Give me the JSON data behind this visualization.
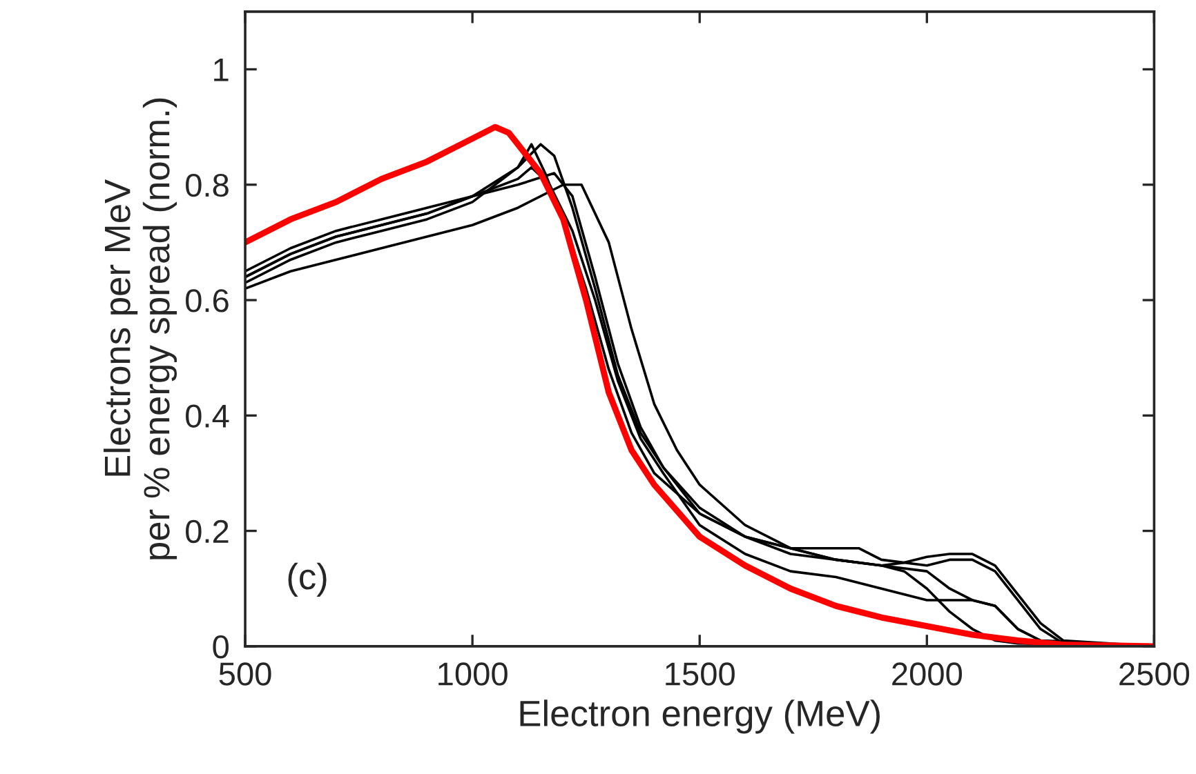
{
  "chart_data": {
    "type": "line",
    "xlabel": "Electron energy (MeV)",
    "ylabel": "Electrons per MeV\nper % energy spread (norm.)",
    "annotations": [
      "(c)"
    ],
    "xlim": [
      500,
      2500
    ],
    "ylim": [
      0,
      1.1
    ],
    "xticks": [
      500,
      1000,
      1500,
      2000,
      2500
    ],
    "yticks": [
      0,
      {
        "value": 0.2,
        "label": "0.2"
      },
      {
        "value": 0.4,
        "label": "0.4"
      },
      {
        "value": 0.6,
        "label": "0.6"
      },
      {
        "value": 0.8,
        "label": "0.8"
      },
      1
    ],
    "grid": false,
    "line_style": "solid",
    "marker": "none",
    "series": [
      {
        "color": "#000000",
        "x": [
          500,
          600,
          700,
          800,
          900,
          1000,
          1100,
          1130,
          1160,
          1200,
          1250,
          1300,
          1350,
          1400,
          1500,
          1600,
          1700,
          1800,
          1900,
          1950,
          2000,
          2050,
          2100,
          2150,
          2200,
          2500
        ],
        "values": [
          0.63,
          0.67,
          0.7,
          0.72,
          0.74,
          0.77,
          0.83,
          0.87,
          0.82,
          0.74,
          0.62,
          0.48,
          0.37,
          0.3,
          0.23,
          0.19,
          0.17,
          0.15,
          0.14,
          0.13,
          0.1,
          0.06,
          0.03,
          0.01,
          0.005,
          0
        ]
      },
      {
        "color": "#000000",
        "x": [
          500,
          600,
          700,
          800,
          900,
          1000,
          1100,
          1150,
          1180,
          1220,
          1270,
          1320,
          1370,
          1420,
          1500,
          1600,
          1700,
          1800,
          1900,
          2000,
          2050,
          2100,
          2150,
          2200,
          2250,
          2500
        ],
        "values": [
          0.64,
          0.68,
          0.71,
          0.73,
          0.75,
          0.78,
          0.83,
          0.87,
          0.85,
          0.76,
          0.62,
          0.47,
          0.37,
          0.31,
          0.24,
          0.19,
          0.16,
          0.15,
          0.14,
          0.13,
          0.1,
          0.08,
          0.07,
          0.03,
          0.01,
          0
        ]
      },
      {
        "color": "#000000",
        "x": [
          500,
          600,
          700,
          800,
          900,
          1000,
          1100,
          1200,
          1240,
          1300,
          1350,
          1400,
          1450,
          1500,
          1600,
          1700,
          1800,
          1850,
          1900,
          2000,
          2050,
          2100,
          2150,
          2200,
          2250,
          2300,
          2500
        ],
        "values": [
          0.62,
          0.65,
          0.67,
          0.69,
          0.71,
          0.73,
          0.76,
          0.8,
          0.8,
          0.7,
          0.55,
          0.42,
          0.34,
          0.28,
          0.21,
          0.17,
          0.17,
          0.17,
          0.15,
          0.14,
          0.15,
          0.15,
          0.13,
          0.08,
          0.03,
          0.005,
          0
        ]
      },
      {
        "color": "#000000",
        "x": [
          500,
          600,
          700,
          800,
          900,
          1000,
          1100,
          1130,
          1170,
          1220,
          1270,
          1320,
          1370,
          1420,
          1500,
          1600,
          1700,
          1800,
          1900,
          2000,
          2100,
          2150,
          2200,
          2250,
          2500
        ],
        "values": [
          0.64,
          0.68,
          0.71,
          0.73,
          0.75,
          0.78,
          0.81,
          0.83,
          0.8,
          0.72,
          0.6,
          0.46,
          0.36,
          0.3,
          0.21,
          0.16,
          0.13,
          0.12,
          0.1,
          0.08,
          0.08,
          0.07,
          0.03,
          0.01,
          0
        ]
      },
      {
        "color": "#000000",
        "x": [
          500,
          600,
          700,
          800,
          900,
          1000,
          1100,
          1180,
          1220,
          1270,
          1320,
          1370,
          1420,
          1500,
          1600,
          1700,
          1800,
          1900,
          1950,
          2000,
          2050,
          2100,
          2150,
          2200,
          2250,
          2300,
          2500
        ],
        "values": [
          0.65,
          0.69,
          0.72,
          0.74,
          0.76,
          0.78,
          0.8,
          0.82,
          0.78,
          0.64,
          0.49,
          0.38,
          0.31,
          0.23,
          0.19,
          0.17,
          0.15,
          0.14,
          0.145,
          0.155,
          0.16,
          0.16,
          0.14,
          0.09,
          0.04,
          0.01,
          0
        ]
      },
      {
        "color": "#ff0000",
        "x": [
          500,
          600,
          700,
          800,
          900,
          1000,
          1050,
          1080,
          1150,
          1200,
          1250,
          1300,
          1350,
          1400,
          1500,
          1600,
          1700,
          1800,
          1900,
          2000,
          2100,
          2200,
          2300,
          2500
        ],
        "values": [
          0.7,
          0.74,
          0.77,
          0.81,
          0.84,
          0.88,
          0.9,
          0.89,
          0.82,
          0.74,
          0.6,
          0.44,
          0.34,
          0.28,
          0.19,
          0.14,
          0.1,
          0.07,
          0.05,
          0.035,
          0.02,
          0.01,
          0.003,
          0
        ]
      }
    ]
  }
}
